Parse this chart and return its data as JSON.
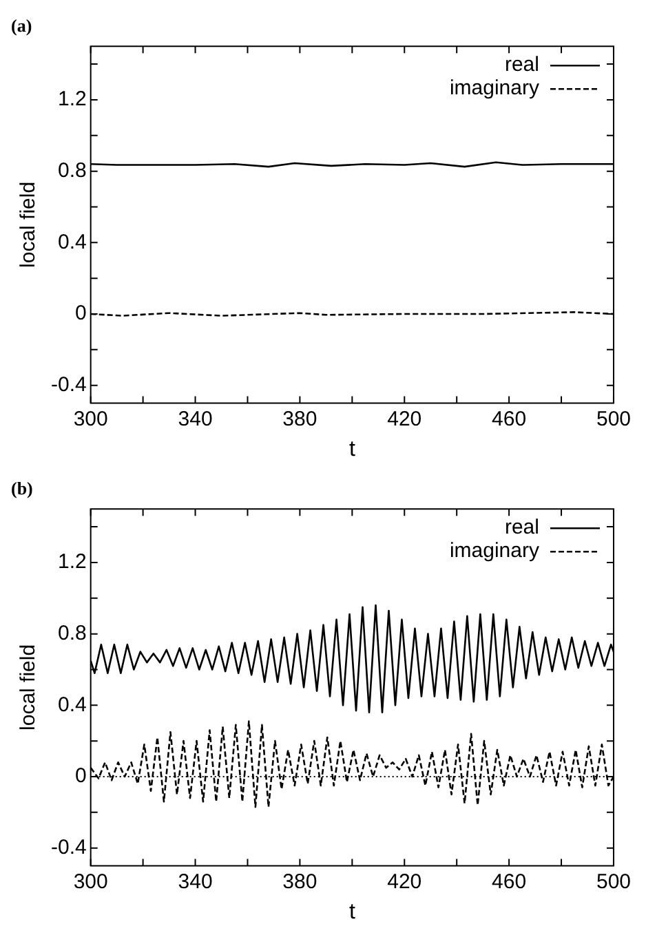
{
  "chart_data": [
    {
      "type": "line",
      "title": "(a)",
      "xlabel": "t",
      "ylabel": "local field",
      "xlim": [
        300,
        500
      ],
      "ylim": [
        -0.5,
        1.5
      ],
      "xticks": [
        300,
        {
          "value": 320,
          "label": null
        },
        340,
        {
          "value": 360,
          "label": null
        },
        380,
        {
          "value": 400,
          "label": null
        },
        420,
        {
          "value": 440,
          "label": null
        },
        460,
        {
          "value": 480,
          "label": null
        },
        500
      ],
      "yticks": [
        {
          "value": -0.4,
          "label": "-0.4"
        },
        {
          "value": -0.2,
          "label": null
        },
        0,
        {
          "value": 0.2,
          "label": null
        },
        0.4,
        {
          "value": 0.6,
          "label": null
        },
        0.8,
        {
          "value": 1,
          "label": null
        },
        1.2,
        {
          "value": 1.4,
          "label": null
        }
      ],
      "legend": "top right",
      "marker": "none",
      "series": [
        {
          "name": "real",
          "color": "#000000",
          "line_style": "solid",
          "x": [
            300,
            310,
            320,
            340,
            355,
            368,
            378,
            392,
            405,
            420,
            430,
            443,
            455,
            465,
            480,
            500
          ],
          "values": [
            0.84,
            0.835,
            0.835,
            0.835,
            0.84,
            0.825,
            0.845,
            0.83,
            0.84,
            0.835,
            0.845,
            0.825,
            0.85,
            0.835,
            0.84,
            0.84
          ]
        },
        {
          "name": "imaginary",
          "color": "#000000",
          "line_style": "dashed",
          "x": [
            300,
            312,
            330,
            350,
            380,
            390,
            420,
            450,
            485,
            500
          ],
          "values": [
            0,
            -0.01,
            0.005,
            -0.01,
            0.005,
            -0.005,
            0,
            0,
            0.01,
            0
          ]
        }
      ]
    },
    {
      "type": "line",
      "title": "(b)",
      "xlabel": "t",
      "ylabel": "local field",
      "xlim": [
        300,
        500
      ],
      "ylim": [
        -0.5,
        1.5
      ],
      "xticks": [
        300,
        {
          "value": 320,
          "label": null
        },
        340,
        {
          "value": 360,
          "label": null
        },
        380,
        {
          "value": 400,
          "label": null
        },
        420,
        {
          "value": 440,
          "label": null
        },
        460,
        {
          "value": 480,
          "label": null
        },
        500
      ],
      "yticks": [
        {
          "value": -0.4,
          "label": "-0.4"
        },
        {
          "value": -0.2,
          "label": null
        },
        0,
        {
          "value": 0.2,
          "label": null
        },
        0.4,
        {
          "value": 0.6,
          "label": null
        },
        0.8,
        {
          "value": 1,
          "label": null
        },
        1.2,
        {
          "value": 1.4,
          "label": null
        }
      ],
      "legend": "top right",
      "marker": "none",
      "ref_lines": [
        {
          "axis": "y",
          "value": 0,
          "color": "#000000",
          "line_style": "dotted"
        }
      ],
      "series": [
        {
          "name": "real",
          "color": "#000000",
          "line_style": "solid",
          "x": [
            300,
            301.5,
            304,
            306.5,
            309,
            311.5,
            314,
            316.5,
            319,
            321.5,
            324,
            326.5,
            329,
            331.5,
            334,
            336.5,
            339,
            341.5,
            344,
            346.5,
            349,
            351.5,
            354,
            356.5,
            359,
            361.5,
            364,
            366.5,
            369,
            371.5,
            374,
            376.5,
            379,
            381.5,
            384,
            386.5,
            389,
            391.5,
            394,
            396.5,
            399,
            401.5,
            404,
            406.5,
            409,
            411.5,
            414,
            416.5,
            419,
            421.5,
            424,
            426.5,
            429,
            431.5,
            434,
            436.5,
            439,
            441.5,
            444,
            446.5,
            449,
            451.5,
            454,
            456.5,
            459,
            461.5,
            464,
            466.5,
            469,
            471.5,
            474,
            476.5,
            479,
            481.5,
            484,
            486.5,
            489,
            491.5,
            494,
            496.5,
            499,
            500
          ],
          "values": [
            0.65,
            0.58,
            0.74,
            0.58,
            0.74,
            0.58,
            0.74,
            0.6,
            0.7,
            0.64,
            0.69,
            0.64,
            0.71,
            0.62,
            0.72,
            0.61,
            0.72,
            0.6,
            0.71,
            0.6,
            0.73,
            0.59,
            0.75,
            0.58,
            0.75,
            0.57,
            0.76,
            0.53,
            0.77,
            0.53,
            0.78,
            0.52,
            0.8,
            0.5,
            0.82,
            0.48,
            0.85,
            0.45,
            0.88,
            0.4,
            0.91,
            0.37,
            0.95,
            0.36,
            0.96,
            0.36,
            0.93,
            0.4,
            0.88,
            0.44,
            0.83,
            0.45,
            0.8,
            0.45,
            0.83,
            0.44,
            0.87,
            0.43,
            0.9,
            0.42,
            0.91,
            0.43,
            0.91,
            0.45,
            0.88,
            0.5,
            0.84,
            0.55,
            0.81,
            0.57,
            0.78,
            0.59,
            0.77,
            0.6,
            0.78,
            0.61,
            0.76,
            0.62,
            0.75,
            0.62,
            0.74,
            0.7
          ]
        },
        {
          "name": "imaginary",
          "color": "#000000",
          "line_style": "dashed",
          "x": [
            300,
            303,
            305.5,
            308,
            310.5,
            313,
            315.5,
            318,
            320.5,
            323,
            325.5,
            328,
            330.5,
            333,
            335.5,
            338,
            340.5,
            343,
            345.5,
            348,
            350.5,
            353,
            355.5,
            358,
            360.5,
            363,
            365.5,
            368,
            370.5,
            373,
            375.5,
            378,
            380.5,
            383,
            385.5,
            388,
            390.5,
            393,
            395.5,
            398,
            400.5,
            403,
            405.5,
            408,
            410.5,
            413,
            415.5,
            418,
            420.5,
            423,
            425.5,
            428,
            430.5,
            433,
            435.5,
            438,
            440.5,
            443,
            445.5,
            448,
            450.5,
            453,
            455.5,
            458,
            460.5,
            463,
            465.5,
            468,
            470.5,
            473,
            475.5,
            478,
            480.5,
            483,
            485.5,
            488,
            490.5,
            493,
            495.5,
            498,
            500
          ],
          "values": [
            0.05,
            -0.01,
            0.08,
            -0.02,
            0.08,
            0,
            0.08,
            -0.04,
            0.18,
            -0.08,
            0.22,
            -0.14,
            0.25,
            -0.1,
            0.2,
            -0.12,
            0.2,
            -0.14,
            0.26,
            -0.14,
            0.28,
            -0.12,
            0.29,
            -0.14,
            0.31,
            -0.17,
            0.29,
            -0.17,
            0.2,
            -0.07,
            0.15,
            -0.05,
            0.18,
            -0.04,
            0.2,
            -0.05,
            0.22,
            -0.05,
            0.2,
            -0.03,
            0.15,
            -0.02,
            0.13,
            0,
            0.12,
            0.05,
            0.08,
            0.04,
            0.1,
            0,
            0.12,
            -0.05,
            0.14,
            -0.06,
            0.15,
            -0.1,
            0.18,
            -0.15,
            0.24,
            -0.16,
            0.2,
            -0.1,
            0.15,
            -0.05,
            0.12,
            0,
            0.1,
            0,
            0.12,
            -0.03,
            0.14,
            -0.05,
            0.14,
            -0.05,
            0.15,
            -0.06,
            0.17,
            -0.05,
            0.18,
            -0.05,
            0
          ]
        }
      ]
    }
  ]
}
